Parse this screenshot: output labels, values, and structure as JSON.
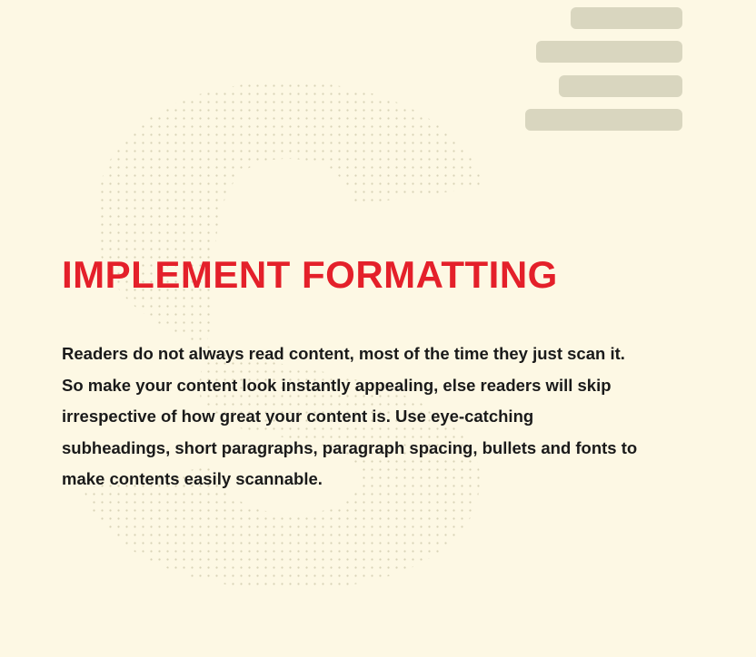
{
  "heading": "IMPLEMENT FORMATTING",
  "paragraph": [
    "Readers do not always read content, most of the time they just scan it.",
    "So make your content look instantly appealing, else readers will skip",
    "irrespective of how great your content is. Use eye-catching",
    "subheadings, short paragraphs, paragraph spacing, bullets and fonts to",
    "make contents easily scannable."
  ],
  "decoration": {
    "icon": "text-lines-icon",
    "shape": "dotted-letter-s"
  },
  "colors": {
    "background": "#fdf8e4",
    "heading": "#e4202a",
    "text": "#1a1a1a",
    "bars": "#d9d6bf",
    "dots": "#d8d2b6"
  }
}
